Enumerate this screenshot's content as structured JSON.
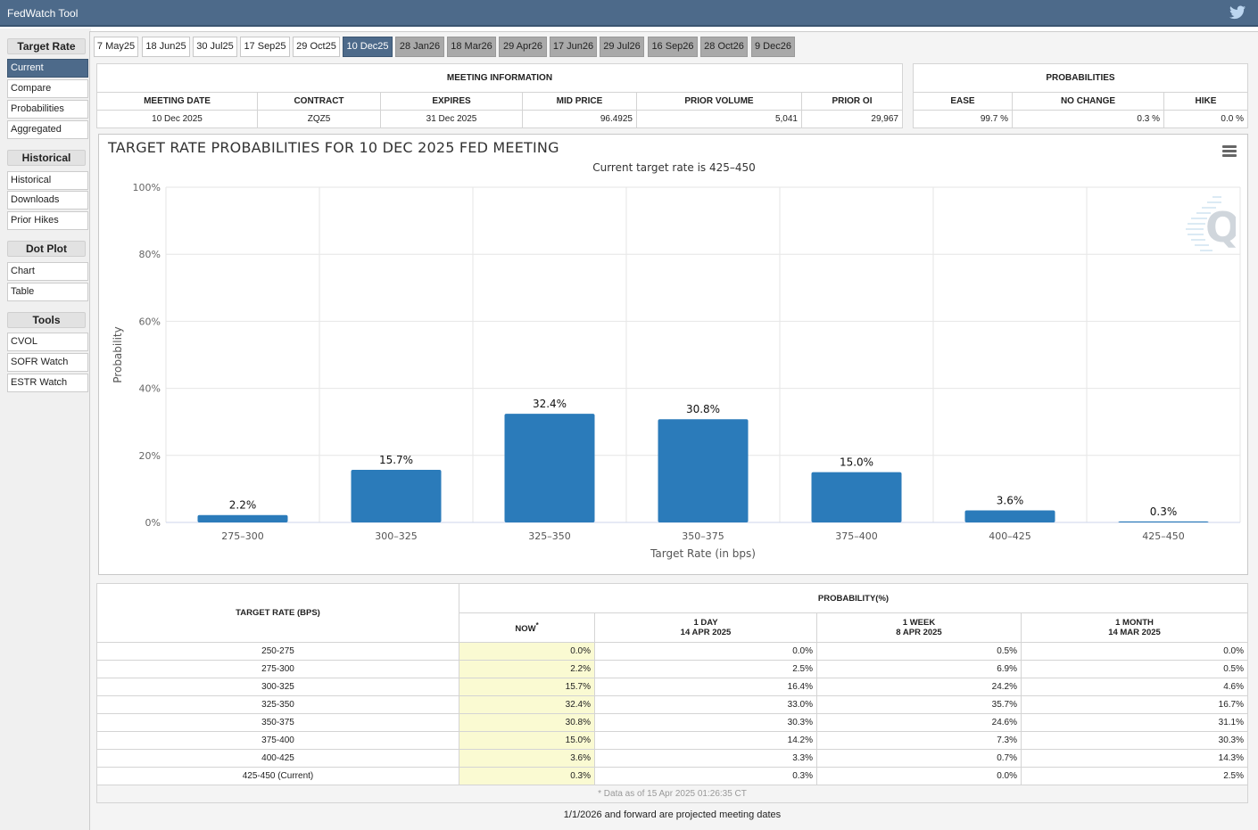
{
  "app": {
    "title": "FedWatch Tool",
    "twitter_icon": "twitter-icon"
  },
  "sidebar": {
    "sections": [
      {
        "heading": "Target Rate",
        "items": [
          "Current",
          "Compare",
          "Probabilities",
          "Aggregated"
        ]
      },
      {
        "heading": "Historical",
        "items": [
          "Historical",
          "Downloads",
          "Prior Hikes"
        ]
      },
      {
        "heading": "Dot Plot",
        "items": [
          "Chart",
          "Table"
        ]
      },
      {
        "heading": "Tools",
        "items": [
          "CVOL",
          "SOFR Watch",
          "ESTR Watch"
        ]
      }
    ],
    "active_item": "Current"
  },
  "tabs": {
    "items": [
      "7 May25",
      "18 Jun25",
      "30 Jul25",
      "17 Sep25",
      "29 Oct25",
      "10 Dec25",
      "28 Jan26",
      "18 Mar26",
      "29 Apr26",
      "17 Jun26",
      "29 Jul26",
      "16 Sep26",
      "28 Oct26",
      "9 Dec26"
    ],
    "active": "10 Dec25"
  },
  "meeting_info": {
    "title": "MEETING INFORMATION",
    "headers": [
      "MEETING DATE",
      "CONTRACT",
      "EXPIRES",
      "MID PRICE",
      "PRIOR VOLUME",
      "PRIOR OI"
    ],
    "values": [
      "10 Dec 2025",
      "ZQZ5",
      "31 Dec 2025",
      "96.4925",
      "5,041",
      "29,967"
    ]
  },
  "probabilities": {
    "title": "PROBABILITIES",
    "headers": [
      "EASE",
      "NO CHANGE",
      "HIKE"
    ],
    "values": [
      "99.7 %",
      "0.3 %",
      "0.0 %"
    ]
  },
  "chart_data": {
    "type": "bar",
    "title": "TARGET RATE PROBABILITIES FOR 10 DEC 2025 FED MEETING",
    "subtitle": "Current target rate is 425–450",
    "xlabel": "Target Rate (in bps)",
    "ylabel": "Probability",
    "categories": [
      "275–300",
      "300–325",
      "325–350",
      "350–375",
      "375–400",
      "400–425",
      "425–450"
    ],
    "values": [
      2.2,
      15.7,
      32.4,
      30.8,
      15.0,
      3.6,
      0.3
    ],
    "data_labels": [
      "2.2%",
      "15.7%",
      "32.4%",
      "30.8%",
      "15.0%",
      "3.6%",
      "0.3%"
    ],
    "yticks": [
      "0%",
      "20%",
      "40%",
      "60%",
      "80%",
      "100%"
    ],
    "ylim": [
      0,
      100
    ],
    "bar_color": "#2b7bba",
    "grid": true,
    "menu_icon": "hamburger-menu-icon"
  },
  "prob_table": {
    "rate_header": "TARGET RATE (BPS)",
    "group_header": "PROBABILITY(%)",
    "columns": [
      {
        "line1": "NOW",
        "line2": "",
        "mark": "*"
      },
      {
        "line1": "1 DAY",
        "line2": "14 APR 2025",
        "mark": ""
      },
      {
        "line1": "1 WEEK",
        "line2": "8 APR 2025",
        "mark": ""
      },
      {
        "line1": "1 MONTH",
        "line2": "14 MAR 2025",
        "mark": ""
      }
    ],
    "rows": [
      {
        "rate": "250-275",
        "vals": [
          "0.0%",
          "0.0%",
          "0.5%",
          "0.0%"
        ]
      },
      {
        "rate": "275-300",
        "vals": [
          "2.2%",
          "2.5%",
          "6.9%",
          "0.5%"
        ]
      },
      {
        "rate": "300-325",
        "vals": [
          "15.7%",
          "16.4%",
          "24.2%",
          "4.6%"
        ]
      },
      {
        "rate": "325-350",
        "vals": [
          "32.4%",
          "33.0%",
          "35.7%",
          "16.7%"
        ]
      },
      {
        "rate": "350-375",
        "vals": [
          "30.8%",
          "30.3%",
          "24.6%",
          "31.1%"
        ]
      },
      {
        "rate": "375-400",
        "vals": [
          "15.0%",
          "14.2%",
          "7.3%",
          "30.3%"
        ]
      },
      {
        "rate": "400-425",
        "vals": [
          "3.6%",
          "3.3%",
          "0.7%",
          "14.3%"
        ]
      },
      {
        "rate": "425-450 (Current)",
        "vals": [
          "0.3%",
          "0.3%",
          "0.0%",
          "2.5%"
        ]
      }
    ],
    "data_note": "* Data as of 15 Apr 2025 01:26:35 CT"
  },
  "footer_note": "1/1/2026 and forward are projected meeting dates"
}
